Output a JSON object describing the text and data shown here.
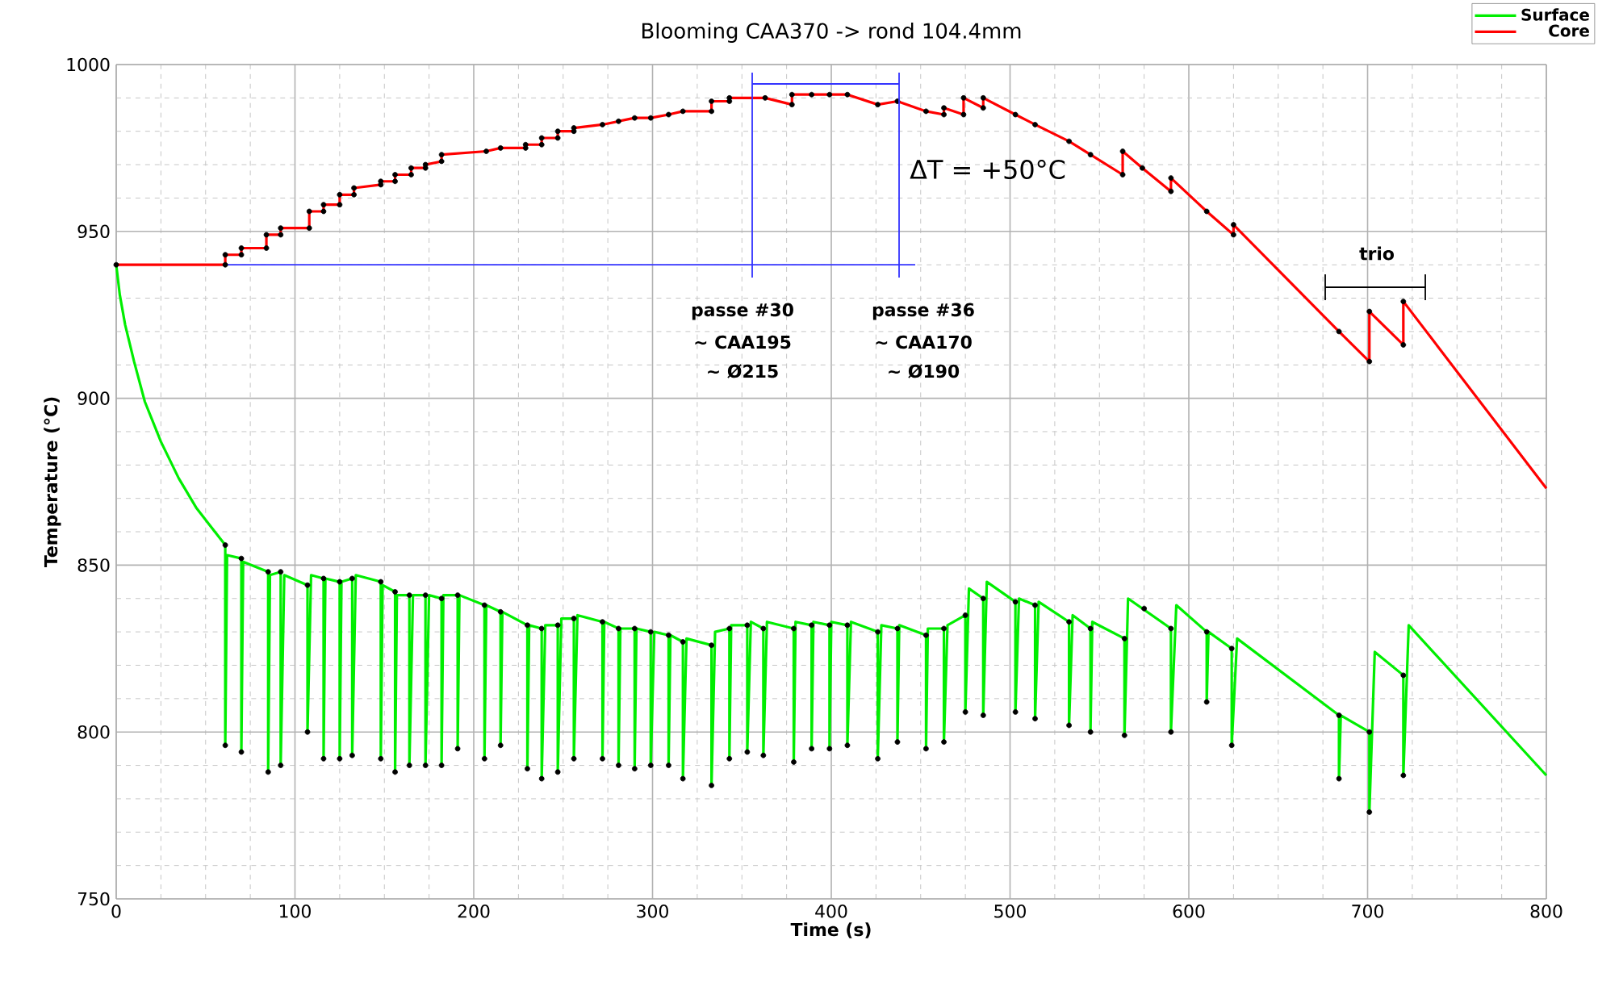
{
  "chart_data": {
    "type": "line",
    "title": "Blooming CAA370 -> rond 104.4mm",
    "xlabel": "Time (s)",
    "ylabel": "Temperature (°C)",
    "xlim": [
      0,
      800
    ],
    "ylim": [
      750,
      1000
    ],
    "xticks": [
      0,
      100,
      200,
      300,
      400,
      500,
      600,
      700,
      800
    ],
    "yticks": [
      750,
      800,
      850,
      900,
      950,
      1000
    ],
    "grid": true,
    "legend": "top right",
    "series": [
      {
        "name": "Surface",
        "color": "#00ee00",
        "x": [
          0,
          2,
          5,
          10,
          16,
          25,
          35,
          45,
          61,
          61,
          62,
          70,
          70,
          71,
          85,
          85,
          86,
          92,
          92,
          94,
          107,
          107,
          109,
          116,
          116,
          117,
          125,
          125,
          126,
          132,
          132,
          134,
          148,
          148,
          149,
          156,
          156,
          157,
          164,
          164,
          166,
          173,
          173,
          175,
          182,
          182,
          183,
          191,
          191,
          192,
          206,
          206,
          207,
          215,
          215,
          216,
          230,
          230,
          231,
          238,
          238,
          240,
          247,
          247,
          249,
          256,
          256,
          258,
          272,
          272,
          273,
          281,
          281,
          282,
          290,
          290,
          291,
          299,
          299,
          301,
          309,
          309,
          310,
          317,
          317,
          319,
          333,
          333,
          335,
          343,
          343,
          344,
          353,
          353,
          355,
          362,
          362,
          364,
          379,
          379,
          380,
          389,
          389,
          390,
          399,
          399,
          400,
          409,
          409,
          411,
          426,
          426,
          428,
          437,
          437,
          438,
          453,
          453,
          454,
          463,
          463,
          465,
          475,
          475,
          477,
          485,
          485,
          487,
          503,
          503,
          505,
          514,
          514,
          516,
          533,
          533,
          535,
          545,
          545,
          546,
          564,
          564,
          566,
          590,
          590,
          593,
          610,
          610,
          611,
          624,
          624,
          627,
          684,
          684,
          685,
          701,
          701,
          704,
          720,
          720,
          723,
          800
        ],
        "values": [
          940,
          931,
          922,
          911,
          899,
          887,
          876,
          867,
          856,
          796,
          853,
          852,
          794,
          851,
          848,
          788,
          847,
          848,
          790,
          847,
          844,
          800,
          847,
          846,
          792,
          846,
          845,
          792,
          845,
          846,
          793,
          847,
          845,
          792,
          844,
          842,
          788,
          841,
          841,
          790,
          841,
          841,
          790,
          841,
          840,
          790,
          841,
          841,
          795,
          841,
          838,
          792,
          838,
          836,
          796,
          836,
          832,
          789,
          832,
          831,
          786,
          832,
          832,
          788,
          834,
          834,
          792,
          835,
          833,
          792,
          833,
          831,
          790,
          831,
          831,
          789,
          831,
          830,
          790,
          830,
          829,
          790,
          829,
          827,
          786,
          828,
          826,
          784,
          830,
          831,
          792,
          832,
          832,
          794,
          833,
          831,
          793,
          833,
          831,
          791,
          833,
          832,
          795,
          833,
          832,
          795,
          833,
          832,
          796,
          833,
          830,
          792,
          832,
          831,
          797,
          832,
          829,
          795,
          831,
          831,
          797,
          832,
          835,
          806,
          843,
          840,
          805,
          845,
          839,
          806,
          840,
          838,
          804,
          839,
          833,
          802,
          835,
          831,
          800,
          833,
          828,
          799,
          840,
          831,
          800,
          838,
          830,
          809,
          830,
          825,
          796,
          828,
          805,
          786,
          805,
          800,
          776,
          824,
          817,
          787,
          832,
          787
        ]
      },
      {
        "name": "Core",
        "color": "#ff0000",
        "x": [
          0,
          61,
          61,
          70,
          70,
          84,
          84,
          92,
          92,
          108,
          108,
          116,
          116,
          125,
          125,
          133,
          133,
          148,
          148,
          156,
          156,
          165,
          165,
          173,
          173,
          182,
          182,
          207,
          215,
          229,
          229,
          238,
          238,
          247,
          247,
          256,
          256,
          272,
          281,
          290,
          299,
          309,
          317,
          333,
          333,
          343,
          343,
          363,
          378,
          378,
          389,
          399,
          409,
          426,
          437,
          453,
          463,
          463,
          474,
          474,
          485,
          485,
          503,
          514,
          533,
          545,
          563,
          563,
          574,
          590,
          590,
          610,
          625,
          625,
          684,
          701,
          701,
          720,
          720,
          800
        ],
        "values": [
          940,
          940,
          943,
          943,
          945,
          945,
          949,
          949,
          951,
          951,
          956,
          956,
          958,
          958,
          961,
          961,
          963,
          964,
          965,
          965,
          967,
          967,
          969,
          969,
          970,
          971,
          973,
          974,
          975,
          975,
          976,
          976,
          978,
          978,
          980,
          980,
          981,
          982,
          983,
          984,
          984,
          985,
          986,
          986,
          989,
          989,
          990,
          990,
          988,
          991,
          991,
          991,
          991,
          988,
          989,
          986,
          985,
          987,
          985,
          990,
          987,
          990,
          985,
          982,
          977,
          973,
          967,
          974,
          969,
          962,
          966,
          956,
          949,
          952,
          920,
          911,
          926,
          916,
          929,
          873
        ]
      },
      {
        "color": "#000000",
        "type": "scatter",
        "x": [
          61,
          61,
          70,
          70,
          85,
          85,
          92,
          92,
          107,
          107,
          116,
          116,
          125,
          125,
          132,
          132,
          148,
          148,
          156,
          156,
          164,
          164,
          173,
          173,
          182,
          182,
          191,
          191,
          206,
          206,
          215,
          215,
          230,
          230,
          238,
          238,
          247,
          247,
          256,
          256,
          272,
          272,
          281,
          281,
          290,
          290,
          299,
          299,
          309,
          309,
          317,
          317,
          333,
          333,
          343,
          343,
          353,
          353,
          362,
          362,
          379,
          379,
          389,
          389,
          399,
          399,
          409,
          409,
          426,
          426,
          437,
          437,
          453,
          453,
          463,
          463,
          475,
          475,
          485,
          485,
          503,
          503,
          514,
          514,
          533,
          533,
          545,
          545,
          564,
          564,
          575,
          590,
          590,
          610,
          610,
          624,
          624,
          684,
          684,
          701,
          701,
          720,
          720
        ],
        "values": [
          856,
          796,
          852,
          794,
          848,
          788,
          848,
          790,
          844,
          800,
          846,
          792,
          845,
          792,
          846,
          793,
          845,
          792,
          842,
          788,
          841,
          790,
          841,
          790,
          840,
          790,
          841,
          795,
          838,
          792,
          836,
          796,
          832,
          789,
          831,
          786,
          832,
          788,
          834,
          792,
          833,
          792,
          831,
          790,
          831,
          789,
          830,
          790,
          829,
          790,
          827,
          786,
          826,
          784,
          831,
          792,
          832,
          794,
          831,
          793,
          831,
          791,
          832,
          795,
          832,
          795,
          832,
          796,
          830,
          792,
          831,
          797,
          829,
          795,
          831,
          797,
          835,
          806,
          840,
          805,
          839,
          806,
          838,
          804,
          833,
          802,
          831,
          800,
          828,
          799,
          837,
          831,
          800,
          830,
          809,
          825,
          796,
          805,
          786,
          800,
          776,
          817,
          787
        ]
      },
      {
        "color": "#000000",
        "type": "scatter",
        "x": [
          61,
          61,
          70,
          70,
          84,
          84,
          92,
          92,
          108,
          108,
          116,
          116,
          125,
          125,
          133,
          133,
          148,
          148,
          156,
          156,
          165,
          165,
          173,
          173,
          182,
          182,
          207,
          215,
          229,
          229,
          238,
          238,
          247,
          247,
          256,
          256,
          272,
          281,
          290,
          299,
          309,
          317,
          333,
          333,
          343,
          343,
          363,
          378,
          378,
          389,
          399,
          409,
          426,
          437,
          453,
          463,
          463,
          474,
          474,
          485,
          485,
          503,
          514,
          533,
          545,
          563,
          563,
          574,
          590,
          590,
          610,
          625,
          625,
          684,
          701,
          701,
          720,
          720
        ],
        "values": [
          940,
          943,
          943,
          945,
          945,
          949,
          949,
          951,
          951,
          956,
          956,
          958,
          958,
          961,
          961,
          963,
          964,
          965,
          965,
          967,
          967,
          969,
          969,
          970,
          971,
          973,
          974,
          975,
          975,
          976,
          976,
          978,
          978,
          980,
          980,
          981,
          982,
          983,
          984,
          984,
          985,
          986,
          986,
          989,
          989,
          990,
          990,
          988,
          991,
          991,
          991,
          991,
          988,
          989,
          986,
          985,
          987,
          985,
          990,
          987,
          990,
          985,
          982,
          977,
          973,
          967,
          974,
          969,
          962,
          966,
          956,
          949,
          952,
          920,
          911,
          926,
          916,
          929
        ]
      },
      {
        "color": "#000000",
        "type": "scatter",
        "x": [
          0
        ],
        "values": [
          940
        ]
      }
    ],
    "ref_lines": [
      {
        "axis": "y",
        "value": 940,
        "color": "#3333ff"
      }
    ],
    "annotations": [
      "ΔT = +50°C",
      "passe #30",
      "~ CAA195",
      "~ Ø215",
      "passe #36",
      "~ CAA170",
      "~ Ø190",
      "trio"
    ]
  }
}
